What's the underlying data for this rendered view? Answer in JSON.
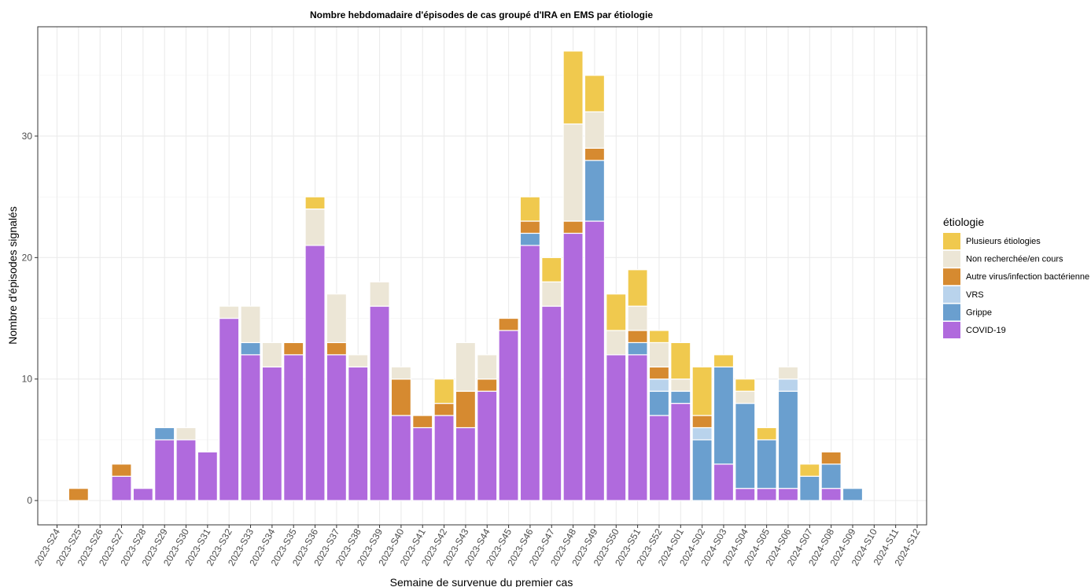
{
  "chart_data": {
    "type": "bar",
    "stacked": true,
    "title": "Nombre hebdomadaire d'épisodes de cas groupé d'IRA en EMS par étiologie",
    "xlabel": "Semaine de survenue du premier cas",
    "ylabel": "Nombre d'épisodes signalés",
    "ylim": [
      -2,
      39
    ],
    "yticks": [
      0,
      10,
      20,
      30
    ],
    "grid": true,
    "legend_position": "right",
    "legend_title": "étiologie",
    "categories": [
      "2023-S24",
      "2023-S25",
      "2023-S26",
      "2023-S27",
      "2023-S28",
      "2023-S29",
      "2023-S30",
      "2023-S31",
      "2023-S32",
      "2023-S33",
      "2023-S34",
      "2023-S35",
      "2023-S36",
      "2023-S37",
      "2023-S38",
      "2023-S39",
      "2023-S40",
      "2023-S41",
      "2023-S42",
      "2023-S43",
      "2023-S44",
      "2023-S45",
      "2023-S46",
      "2023-S47",
      "2023-S48",
      "2023-S49",
      "2023-S50",
      "2023-S51",
      "2023-S52",
      "2024-S01",
      "2024-S02",
      "2024-S03",
      "2024-S04",
      "2024-S05",
      "2024-S06",
      "2024-S07",
      "2024-S08",
      "2024-S09",
      "2024-S10",
      "2024-S11",
      "2024-S12"
    ],
    "series": [
      {
        "name": "COVID-19",
        "color": "#B06ADD",
        "values": [
          0,
          0,
          0,
          2,
          1,
          5,
          5,
          4,
          15,
          12,
          11,
          12,
          21,
          12,
          11,
          16,
          7,
          6,
          7,
          6,
          9,
          14,
          21,
          16,
          22,
          23,
          12,
          12,
          7,
          8,
          0,
          3,
          1,
          1,
          1,
          0,
          1,
          0,
          0,
          0,
          0
        ]
      },
      {
        "name": "Grippe",
        "color": "#6A9FCF",
        "values": [
          0,
          0,
          0,
          0,
          0,
          1,
          0,
          0,
          0,
          1,
          0,
          0,
          0,
          0,
          0,
          0,
          0,
          0,
          0,
          0,
          0,
          0,
          1,
          0,
          0,
          5,
          0,
          1,
          2,
          1,
          5,
          8,
          7,
          4,
          8,
          2,
          2,
          1,
          0,
          0,
          0
        ]
      },
      {
        "name": "VRS",
        "color": "#B9D3EC",
        "values": [
          0,
          0,
          0,
          0,
          0,
          0,
          0,
          0,
          0,
          0,
          0,
          0,
          0,
          0,
          0,
          0,
          0,
          0,
          0,
          0,
          0,
          0,
          0,
          0,
          0,
          0,
          0,
          0,
          1,
          0,
          1,
          0,
          0,
          0,
          1,
          0,
          0,
          0,
          0,
          0,
          0
        ]
      },
      {
        "name": "Autre virus/infection bactérienne",
        "color": "#D68A30",
        "values": [
          0,
          1,
          0,
          1,
          0,
          0,
          0,
          0,
          0,
          0,
          0,
          1,
          0,
          1,
          0,
          0,
          3,
          1,
          1,
          3,
          1,
          1,
          1,
          0,
          1,
          1,
          0,
          1,
          1,
          0,
          1,
          0,
          0,
          0,
          0,
          0,
          1,
          0,
          0,
          0,
          0
        ]
      },
      {
        "name": "Non recherchée/en cours",
        "color": "#ECE6D6",
        "values": [
          0,
          0,
          0,
          0,
          0,
          0,
          1,
          0,
          1,
          3,
          2,
          0,
          3,
          4,
          1,
          2,
          1,
          0,
          0,
          4,
          2,
          0,
          0,
          2,
          8,
          3,
          2,
          2,
          2,
          1,
          0,
          0,
          1,
          0,
          1,
          0,
          0,
          0,
          0,
          0,
          0
        ]
      },
      {
        "name": "Plusieurs étiologies",
        "color": "#F0C94E",
        "values": [
          0,
          0,
          0,
          0,
          0,
          0,
          0,
          0,
          0,
          0,
          0,
          0,
          1,
          0,
          0,
          0,
          0,
          0,
          2,
          0,
          0,
          0,
          2,
          2,
          6,
          3,
          3,
          3,
          1,
          3,
          4,
          1,
          1,
          1,
          0,
          1,
          0,
          0,
          0,
          0,
          0
        ]
      }
    ],
    "legend_order": [
      "Plusieurs étiologies",
      "Non recherchée/en cours",
      "Autre virus/infection bactérienne",
      "VRS",
      "Grippe",
      "COVID-19"
    ]
  }
}
